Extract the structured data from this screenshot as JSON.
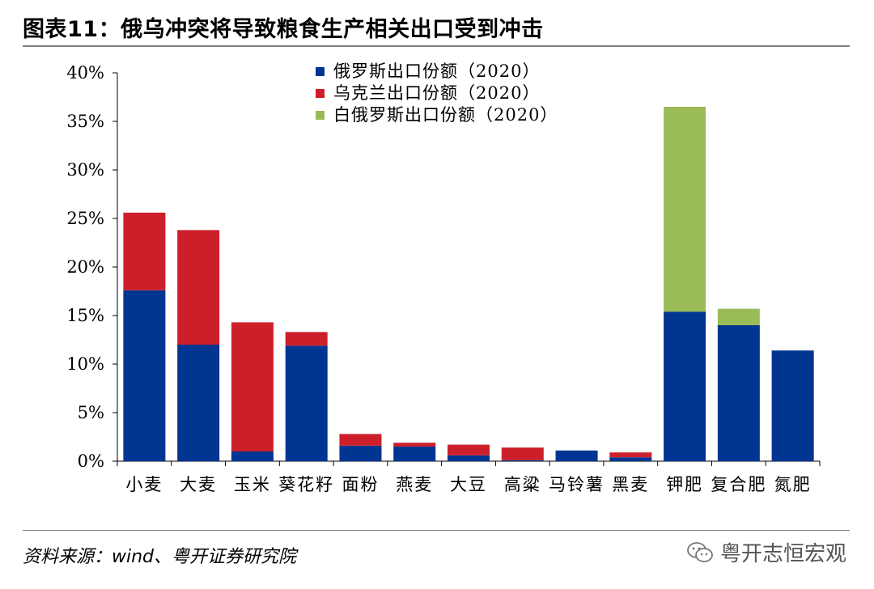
{
  "header": {
    "title": "图表11：俄乌冲突将导致粮食生产相关出口受到冲击"
  },
  "footer": {
    "source": "资料来源：wind、粤开证券研究院",
    "brand": "粤开志恒宏观"
  },
  "chart_data": {
    "type": "bar",
    "stacked": true,
    "categories": [
      "小麦",
      "大麦",
      "玉米",
      "葵花籽",
      "面粉",
      "燕麦",
      "大豆",
      "高粱",
      "马铃薯",
      "黑麦",
      "钾肥",
      "复合肥",
      "氮肥"
    ],
    "series": [
      {
        "name": "俄罗斯出口份额（2020）",
        "color": "#003591",
        "values": [
          17.6,
          12.0,
          1.0,
          11.9,
          1.6,
          1.5,
          0.6,
          0.1,
          1.1,
          0.4,
          15.4,
          14.0,
          11.4
        ]
      },
      {
        "name": "乌克兰出口份额（2020）",
        "color": "#cd1f2a",
        "values": [
          8.0,
          11.8,
          13.3,
          1.4,
          1.2,
          0.4,
          1.1,
          1.3,
          0.0,
          0.5,
          0.0,
          0.0,
          0.0
        ]
      },
      {
        "name": "白俄罗斯出口份额（2020）",
        "color": "#9bbb59",
        "values": [
          0.0,
          0.0,
          0.0,
          0.0,
          0.0,
          0.0,
          0.0,
          0.0,
          0.0,
          0.0,
          21.1,
          1.7,
          0.0
        ]
      }
    ],
    "ylim": [
      0,
      40
    ],
    "yticks": [
      "0%",
      "5%",
      "10%",
      "15%",
      "20%",
      "25%",
      "30%",
      "35%",
      "40%"
    ],
    "unit": "%",
    "legend_position": "top-center",
    "grid": false
  }
}
